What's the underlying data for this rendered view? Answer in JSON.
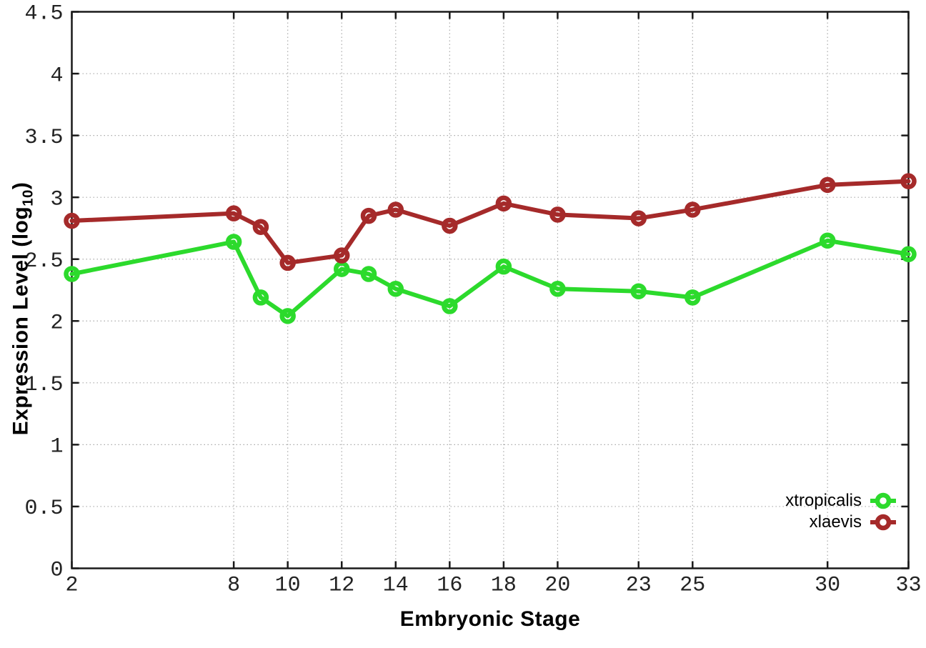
{
  "chart_data": {
    "type": "line",
    "title": "",
    "xlabel": "Embryonic Stage",
    "ylabel": "Expression Level (log10)",
    "ylabel_parts": {
      "main": "Expression Level (log",
      "sub": "10",
      "close": ")"
    },
    "x": [
      2,
      8,
      9,
      10,
      12,
      13,
      14,
      16,
      18,
      20,
      23,
      25,
      30,
      33
    ],
    "xlim": [
      2,
      33
    ],
    "ylim": [
      0,
      4.5
    ],
    "xticks": [
      2,
      8,
      10,
      12,
      14,
      16,
      18,
      20,
      23,
      25,
      30,
      33
    ],
    "yticks": [
      0,
      0.5,
      1,
      1.5,
      2,
      2.5,
      3,
      3.5,
      4,
      4.5
    ],
    "grid": true,
    "legend_position": "inside-bottom-right",
    "series": [
      {
        "name": "xtropicalis",
        "color": "#2cda2c",
        "values": [
          2.38,
          2.64,
          2.19,
          2.04,
          2.42,
          2.38,
          2.26,
          2.12,
          2.44,
          2.26,
          2.24,
          2.19,
          2.65,
          2.54
        ]
      },
      {
        "name": "xlaevis",
        "color": "#a52a2a",
        "values": [
          2.81,
          2.87,
          2.76,
          2.47,
          2.53,
          2.85,
          2.9,
          2.77,
          2.95,
          2.86,
          2.83,
          2.9,
          3.1,
          3.13
        ]
      }
    ],
    "style": {
      "background": "#ffffff",
      "border_color": "#1a1a1a",
      "grid_color": "#aaaaaa",
      "tick_label_color": "#222222"
    }
  }
}
